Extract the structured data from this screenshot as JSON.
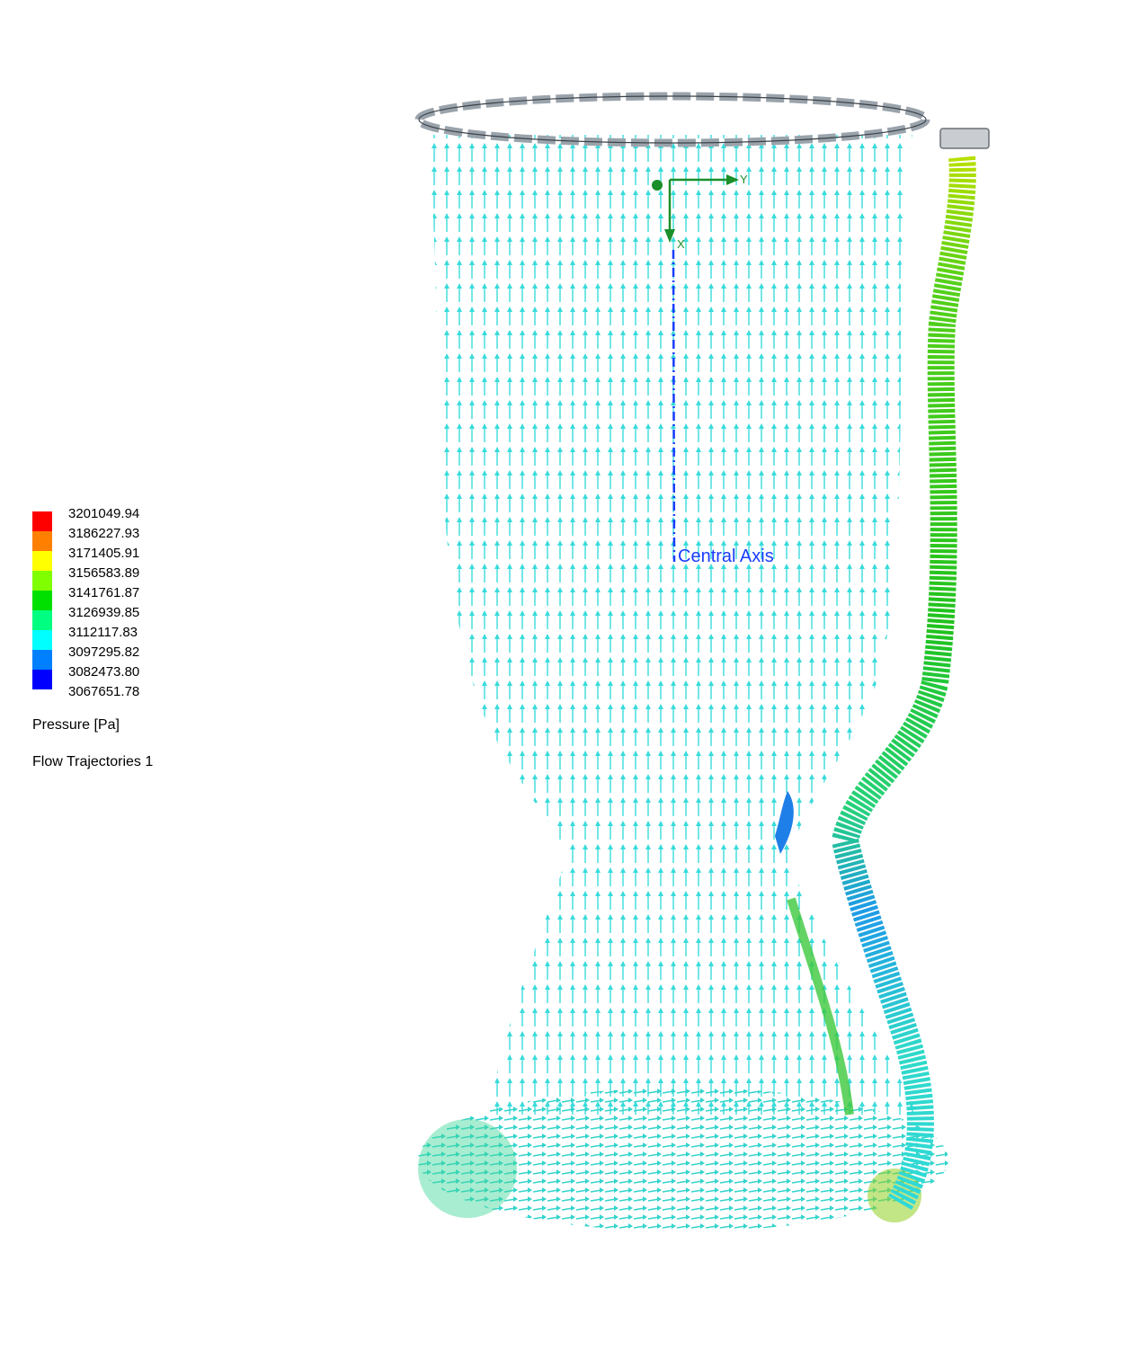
{
  "legend": {
    "title": "Pressure [Pa]",
    "feature": "Flow Trajectories 1",
    "stops": [
      {
        "value": "3201049.94",
        "color": "#ff0000"
      },
      {
        "value": "3186227.93",
        "color": "#ff8000"
      },
      {
        "value": "3171405.91",
        "color": "#ffff00"
      },
      {
        "value": "3156583.89",
        "color": "#80ff00"
      },
      {
        "value": "3141761.87",
        "color": "#00e000"
      },
      {
        "value": "3126939.85",
        "color": "#00ff80"
      },
      {
        "value": "3112117.83",
        "color": "#00ffff"
      },
      {
        "value": "3097295.82",
        "color": "#0080ff"
      },
      {
        "value": "3082473.80",
        "color": "#0000ff"
      },
      {
        "value": "3067651.78",
        "color": ""
      }
    ]
  },
  "axes": {
    "y_label": "Y",
    "x_label": "X",
    "central_axis_label": "Central Axis"
  },
  "colors": {
    "flow_main": "#2fd9d9",
    "flow_secondary": "#3cc86a",
    "ring": "#9aa3ab",
    "axis_green": "#1a8f2a",
    "axis_blue": "#1a3cff"
  }
}
